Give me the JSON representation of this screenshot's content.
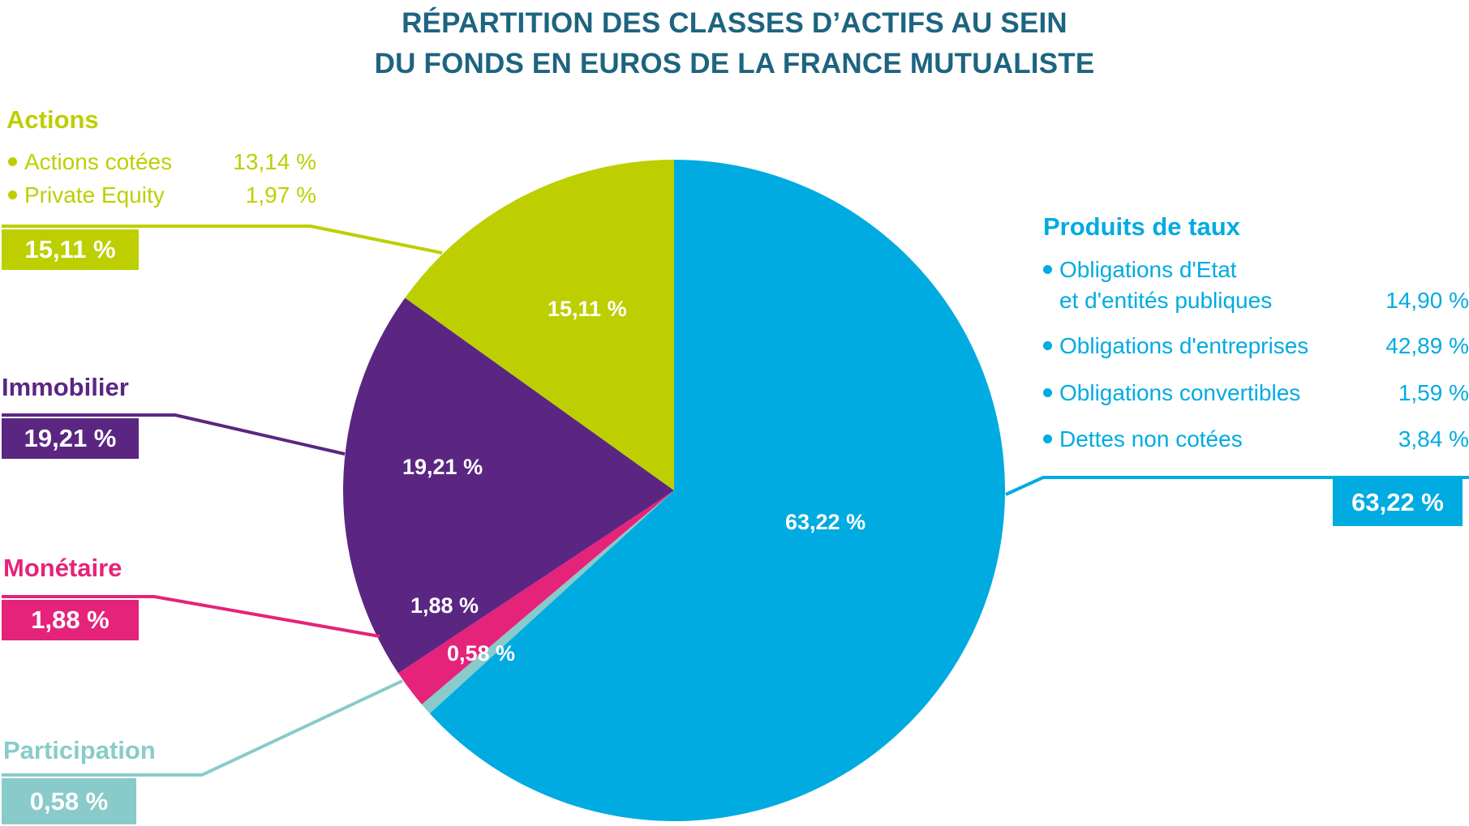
{
  "title": {
    "line1": "RÉPARTITION DES CLASSES D’ACTIFS AU SEIN",
    "line2": "DU FONDS EN EUROS DE LA FRANCE MUTUALISTE"
  },
  "colors": {
    "title": "#1d6480",
    "actions": "#bdcf00",
    "immobilier": "#5b2682",
    "monetaire": "#e5237a",
    "participation": "#88cbca",
    "produits_de_taux": "#00abe1"
  },
  "groups": {
    "actions": {
      "title": "Actions",
      "total": "15,11 %",
      "slice_label": "15,11 %",
      "items": [
        {
          "label": "Actions cotées",
          "value": "13,14 %"
        },
        {
          "label": "Private Equity",
          "value": "1,97 %"
        }
      ]
    },
    "immobilier": {
      "title": "Immobilier",
      "total": "19,21 %",
      "slice_label": "19,21 %"
    },
    "monetaire": {
      "title": "Monétaire",
      "total": "1,88 %",
      "slice_label": "1,88 %"
    },
    "participation": {
      "title": "Participation",
      "total": "0,58 %",
      "slice_label": "0,58 %"
    },
    "produits_de_taux": {
      "title": "Produits de taux",
      "total": "63,22 %",
      "slice_label": "63,22 %",
      "items": [
        {
          "label_line1": "Obligations d'Etat",
          "label_line2": "et d'entités publiques",
          "value": "14,90 %"
        },
        {
          "label": "Obligations d'entreprises",
          "value": "42,89 %"
        },
        {
          "label": "Obligations convertibles",
          "value": "1,59 %"
        },
        {
          "label": "Dettes non cotées",
          "value": "3,84 %"
        }
      ]
    }
  },
  "chart_data": {
    "type": "pie",
    "title": "RÉPARTITION DES CLASSES D’ACTIFS AU SEIN DU FONDS EN EUROS DE LA FRANCE MUTUALISTE",
    "categories": [
      "Produits de taux",
      "Participation",
      "Monétaire",
      "Immobilier",
      "Actions"
    ],
    "values": [
      63.22,
      0.58,
      1.88,
      19.21,
      15.11
    ],
    "unit": "%",
    "colors": [
      "#00abe1",
      "#88cbca",
      "#e5237a",
      "#5b2682",
      "#bdcf00"
    ],
    "start_angle": "12 o'clock",
    "direction": "clockwise",
    "sub_breakdown": {
      "Actions": [
        {
          "name": "Actions cotées",
          "value": 13.14
        },
        {
          "name": "Private Equity",
          "value": 1.97
        }
      ],
      "Produits de taux": [
        {
          "name": "Obligations d'Etat et d'entités publiques",
          "value": 14.9
        },
        {
          "name": "Obligations d'entreprises",
          "value": 42.89
        },
        {
          "name": "Obligations convertibles",
          "value": 1.59
        },
        {
          "name": "Dettes non cotées",
          "value": 3.84
        }
      ]
    },
    "legend": "callout labels around pie"
  }
}
